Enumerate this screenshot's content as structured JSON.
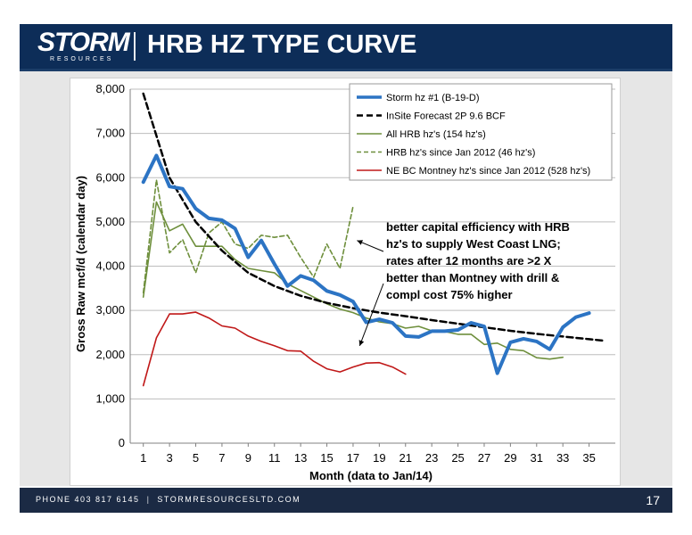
{
  "header": {
    "logo_text": "STORM",
    "logo_subtext": "RESOURCES",
    "title": "HRB HZ TYPE CURVE"
  },
  "footer": {
    "phone": "PHONE 403 817 6145",
    "website": "STORMRESOURCESLTD.COM",
    "page_number": "17"
  },
  "colors": {
    "header_bg": "#0d2d58",
    "footer_bg": "#1b2a44",
    "storm_series": "#2c74c4",
    "insite_series": "#000000",
    "hrb_all_series": "#6e8f3c",
    "hrb_2012_series": "#6e8f3c",
    "montney_series": "#c01818"
  },
  "chart_data": {
    "type": "line",
    "title": "",
    "xlabel": "Month (data to Jan/14)",
    "ylabel": "Gross Raw mcf/d (calendar day)",
    "xlim": [
      0,
      37
    ],
    "ylim": [
      0,
      8000
    ],
    "x_ticks": [
      1,
      3,
      5,
      7,
      9,
      11,
      13,
      15,
      17,
      19,
      21,
      23,
      25,
      27,
      29,
      31,
      33,
      35
    ],
    "y_ticks": [
      0,
      1000,
      2000,
      3000,
      4000,
      5000,
      6000,
      7000,
      8000
    ],
    "y_tick_labels": [
      "0",
      "1,000",
      "2,000",
      "3,000",
      "4,000",
      "5,000",
      "6,000",
      "7,000",
      "8,000"
    ],
    "grid": "horizontal",
    "legend_position": "top-right",
    "series": [
      {
        "name": "Storm hz #1 (B-19-D)",
        "style": "solid-thick",
        "x": [
          1,
          2,
          3,
          4,
          5,
          6,
          7,
          8,
          9,
          10,
          11,
          12,
          13,
          14,
          15,
          16,
          17,
          18,
          19,
          20,
          21,
          22,
          23,
          24,
          25,
          26,
          27,
          28,
          29,
          30,
          31,
          32,
          33,
          34,
          35
        ],
        "y": [
          5900,
          6500,
          5800,
          5750,
          5300,
          5080,
          5040,
          4850,
          4200,
          4580,
          4050,
          3550,
          3780,
          3680,
          3440,
          3350,
          3200,
          2730,
          2800,
          2720,
          2420,
          2400,
          2530,
          2530,
          2560,
          2720,
          2640,
          1580,
          2280,
          2360,
          2300,
          2120,
          2620,
          2850,
          2940
        ]
      },
      {
        "name": "InSite Forecast 2P 9.6 BCF",
        "style": "dashed-thick",
        "x": [
          1,
          3,
          5,
          7,
          9,
          11,
          13,
          15,
          17,
          19,
          21,
          23,
          25,
          27,
          29,
          31,
          33,
          35,
          36
        ],
        "y": [
          7900,
          6000,
          5000,
          4350,
          3850,
          3550,
          3330,
          3170,
          3050,
          2950,
          2870,
          2780,
          2700,
          2620,
          2540,
          2470,
          2410,
          2350,
          2320
        ]
      },
      {
        "name": "All HRB hz's (154 hz's)",
        "style": "solid",
        "x": [
          1,
          2,
          3,
          4,
          5,
          6,
          7,
          8,
          9,
          10,
          11,
          12,
          13,
          14,
          15,
          16,
          17,
          18,
          19,
          20,
          21,
          22,
          23,
          24,
          25,
          26,
          27,
          28,
          29,
          30,
          31,
          32,
          33
        ],
        "y": [
          3300,
          5450,
          4800,
          4950,
          4450,
          4450,
          4450,
          4150,
          3950,
          3900,
          3850,
          3600,
          3450,
          3300,
          3150,
          3030,
          2950,
          2830,
          2740,
          2700,
          2600,
          2640,
          2540,
          2520,
          2460,
          2460,
          2230,
          2260,
          2120,
          2090,
          1930,
          1900,
          1940
        ]
      },
      {
        "name": "HRB hz's since Jan 2012 (46 hz's)",
        "style": "dashed",
        "x": [
          1,
          2,
          3,
          4,
          5,
          6,
          7,
          8,
          9,
          10,
          11,
          12,
          13,
          14,
          15,
          16,
          17
        ],
        "y": [
          3400,
          5950,
          4300,
          4600,
          3850,
          4750,
          5000,
          4500,
          4400,
          4700,
          4650,
          4700,
          4200,
          3750,
          4500,
          3950,
          5350
        ]
      },
      {
        "name": "NE BC Montney hz's since Jan 2012 (528 hz's)",
        "style": "solid",
        "x": [
          1,
          2,
          3,
          4,
          5,
          6,
          7,
          8,
          9,
          10,
          11,
          12,
          13,
          14,
          15,
          16,
          17,
          18,
          19,
          20,
          21
        ],
        "y": [
          1300,
          2380,
          2920,
          2920,
          2960,
          2830,
          2650,
          2600,
          2420,
          2300,
          2200,
          2090,
          2080,
          1850,
          1680,
          1610,
          1720,
          1810,
          1820,
          1720,
          1560
        ]
      }
    ],
    "annotations": [
      {
        "lines": [
          "better capital efficiency with HRB",
          "hz's to supply West Coast LNG;",
          "rates after 12 months are >2 X",
          "better than Montney with drill &",
          "compl cost 75% higher"
        ],
        "arrows_to": [
          {
            "x": 17.3,
            "y": 4580
          },
          {
            "x": 17.5,
            "y": 2200
          }
        ]
      }
    ]
  }
}
